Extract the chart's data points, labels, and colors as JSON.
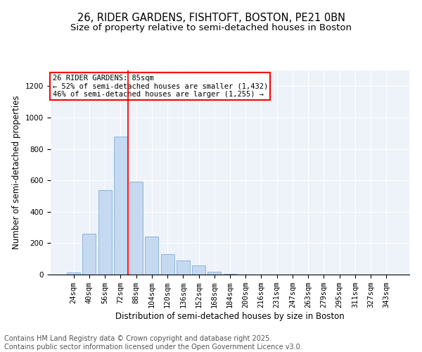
{
  "title_line1": "26, RIDER GARDENS, FISHTOFT, BOSTON, PE21 0BN",
  "title_line2": "Size of property relative to semi-detached houses in Boston",
  "xlabel": "Distribution of semi-detached houses by size in Boston",
  "ylabel": "Number of semi-detached properties",
  "categories": [
    "24sqm",
    "40sqm",
    "56sqm",
    "72sqm",
    "88sqm",
    "104sqm",
    "120sqm",
    "136sqm",
    "152sqm",
    "168sqm",
    "184sqm",
    "200sqm",
    "216sqm",
    "231sqm",
    "247sqm",
    "263sqm",
    "279sqm",
    "295sqm",
    "311sqm",
    "327sqm",
    "343sqm"
  ],
  "values": [
    15,
    260,
    540,
    880,
    590,
    240,
    130,
    90,
    60,
    20,
    5,
    2,
    1,
    1,
    0,
    0,
    0,
    0,
    0,
    0,
    0
  ],
  "bar_color": "#c5d9f1",
  "bar_edge_color": "#7fafd4",
  "vline_color": "red",
  "vline_pos": 3.5,
  "annotation_text": "26 RIDER GARDENS: 85sqm\n← 52% of semi-detached houses are smaller (1,432)\n46% of semi-detached houses are larger (1,255) →",
  "annotation_box_color": "white",
  "annotation_box_edge_color": "red",
  "ylim": [
    0,
    1300
  ],
  "yticks": [
    0,
    200,
    400,
    600,
    800,
    1000,
    1200
  ],
  "footer_line1": "Contains HM Land Registry data © Crown copyright and database right 2025.",
  "footer_line2": "Contains public sector information licensed under the Open Government Licence v3.0.",
  "bg_color": "#eef3fa",
  "fig_bg_color": "#ffffff",
  "title_fontsize": 10.5,
  "subtitle_fontsize": 9.5,
  "axis_label_fontsize": 8.5,
  "tick_fontsize": 7.5,
  "annotation_fontsize": 7.5,
  "footer_fontsize": 7
}
